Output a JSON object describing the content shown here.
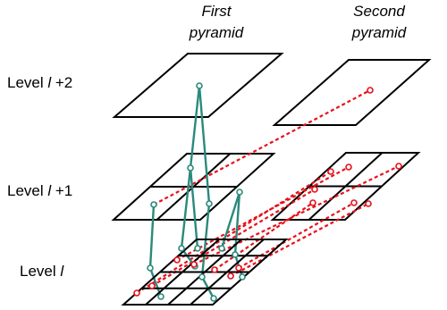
{
  "headers": {
    "first_line1": "First",
    "first_line2": "pyramid",
    "second_line1": "Second",
    "second_line2": "pyramid"
  },
  "levels": {
    "top": {
      "prefix": "Level ",
      "var": "l",
      "suffix": " +2"
    },
    "middle": {
      "prefix": "Level ",
      "var": "l",
      "suffix": " +1"
    },
    "bottom": {
      "prefix": "Level ",
      "var": "l",
      "suffix": ""
    }
  },
  "colors": {
    "grid": "#000000",
    "first_pyramid_links": "#2a8a7c",
    "cross_pyramid_links": "#e8101a",
    "background": "#ffffff"
  }
}
